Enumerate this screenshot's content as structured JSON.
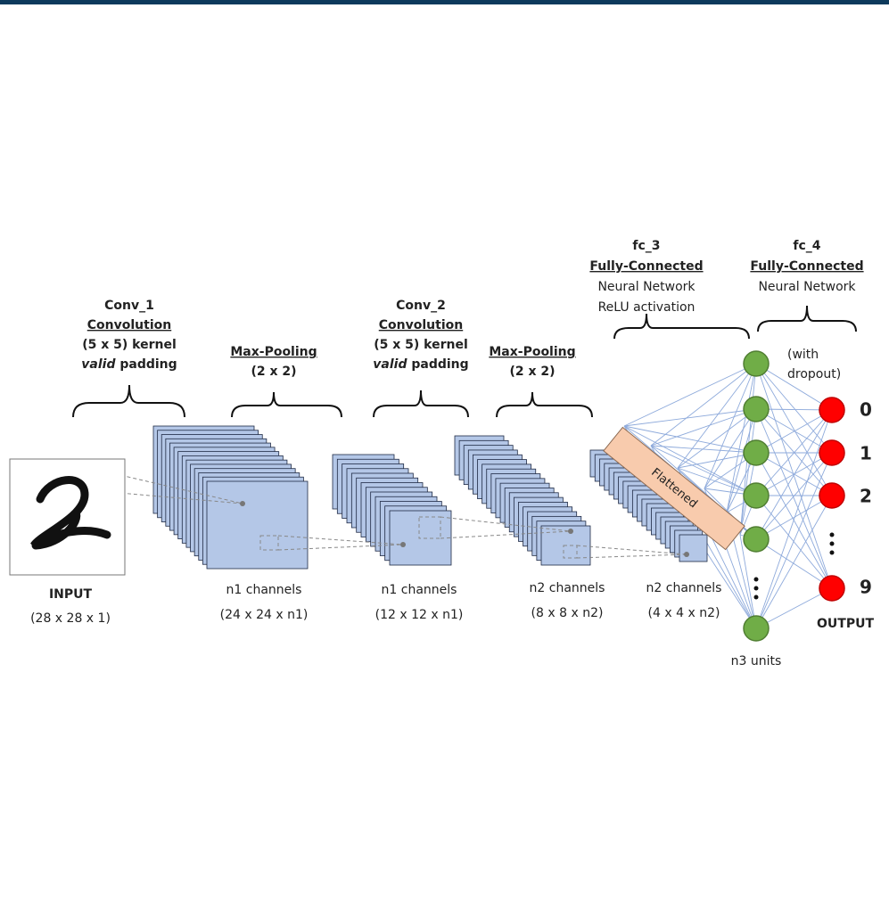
{
  "input": {
    "label": "INPUT",
    "dims": "(28 x 28 x 1)"
  },
  "conv_1": {
    "name": "Conv_1",
    "kind": "Convolution",
    "kernel": "(5 x 5) kernel",
    "padding": [
      "valid",
      "padding"
    ],
    "channels": "n1 channels",
    "dims": "(24 x 24 x n1)"
  },
  "pool_1": {
    "name": "Max-Pooling",
    "size": "(2 x 2)",
    "channels": "n1 channels",
    "dims": "(12 x 12 x n1)"
  },
  "conv_2": {
    "name": "Conv_2",
    "kind": "Convolution",
    "kernel": "(5 x 5) kernel",
    "padding": [
      "valid",
      "padding"
    ],
    "channels": "n2 channels",
    "dims": "(8 x 8 x n2)"
  },
  "pool_2": {
    "name": "Max-Pooling",
    "size": "(2 x 2)",
    "channels": "n2 channels",
    "dims": "(4 x 4 x n2)"
  },
  "fc_3": {
    "name": "fc_3",
    "kind": "Fully-Connected",
    "lines": [
      "Neural Network",
      "ReLU activation"
    ],
    "flattened": "Flattened",
    "units": "n3 units"
  },
  "fc_4": {
    "name": "fc_4",
    "kind": "Fully-Connected",
    "lines": [
      "Neural Network"
    ],
    "note": [
      "(with",
      "dropout)"
    ],
    "outputs": [
      "0",
      "1",
      "2",
      "9"
    ],
    "label": "OUTPUT"
  }
}
